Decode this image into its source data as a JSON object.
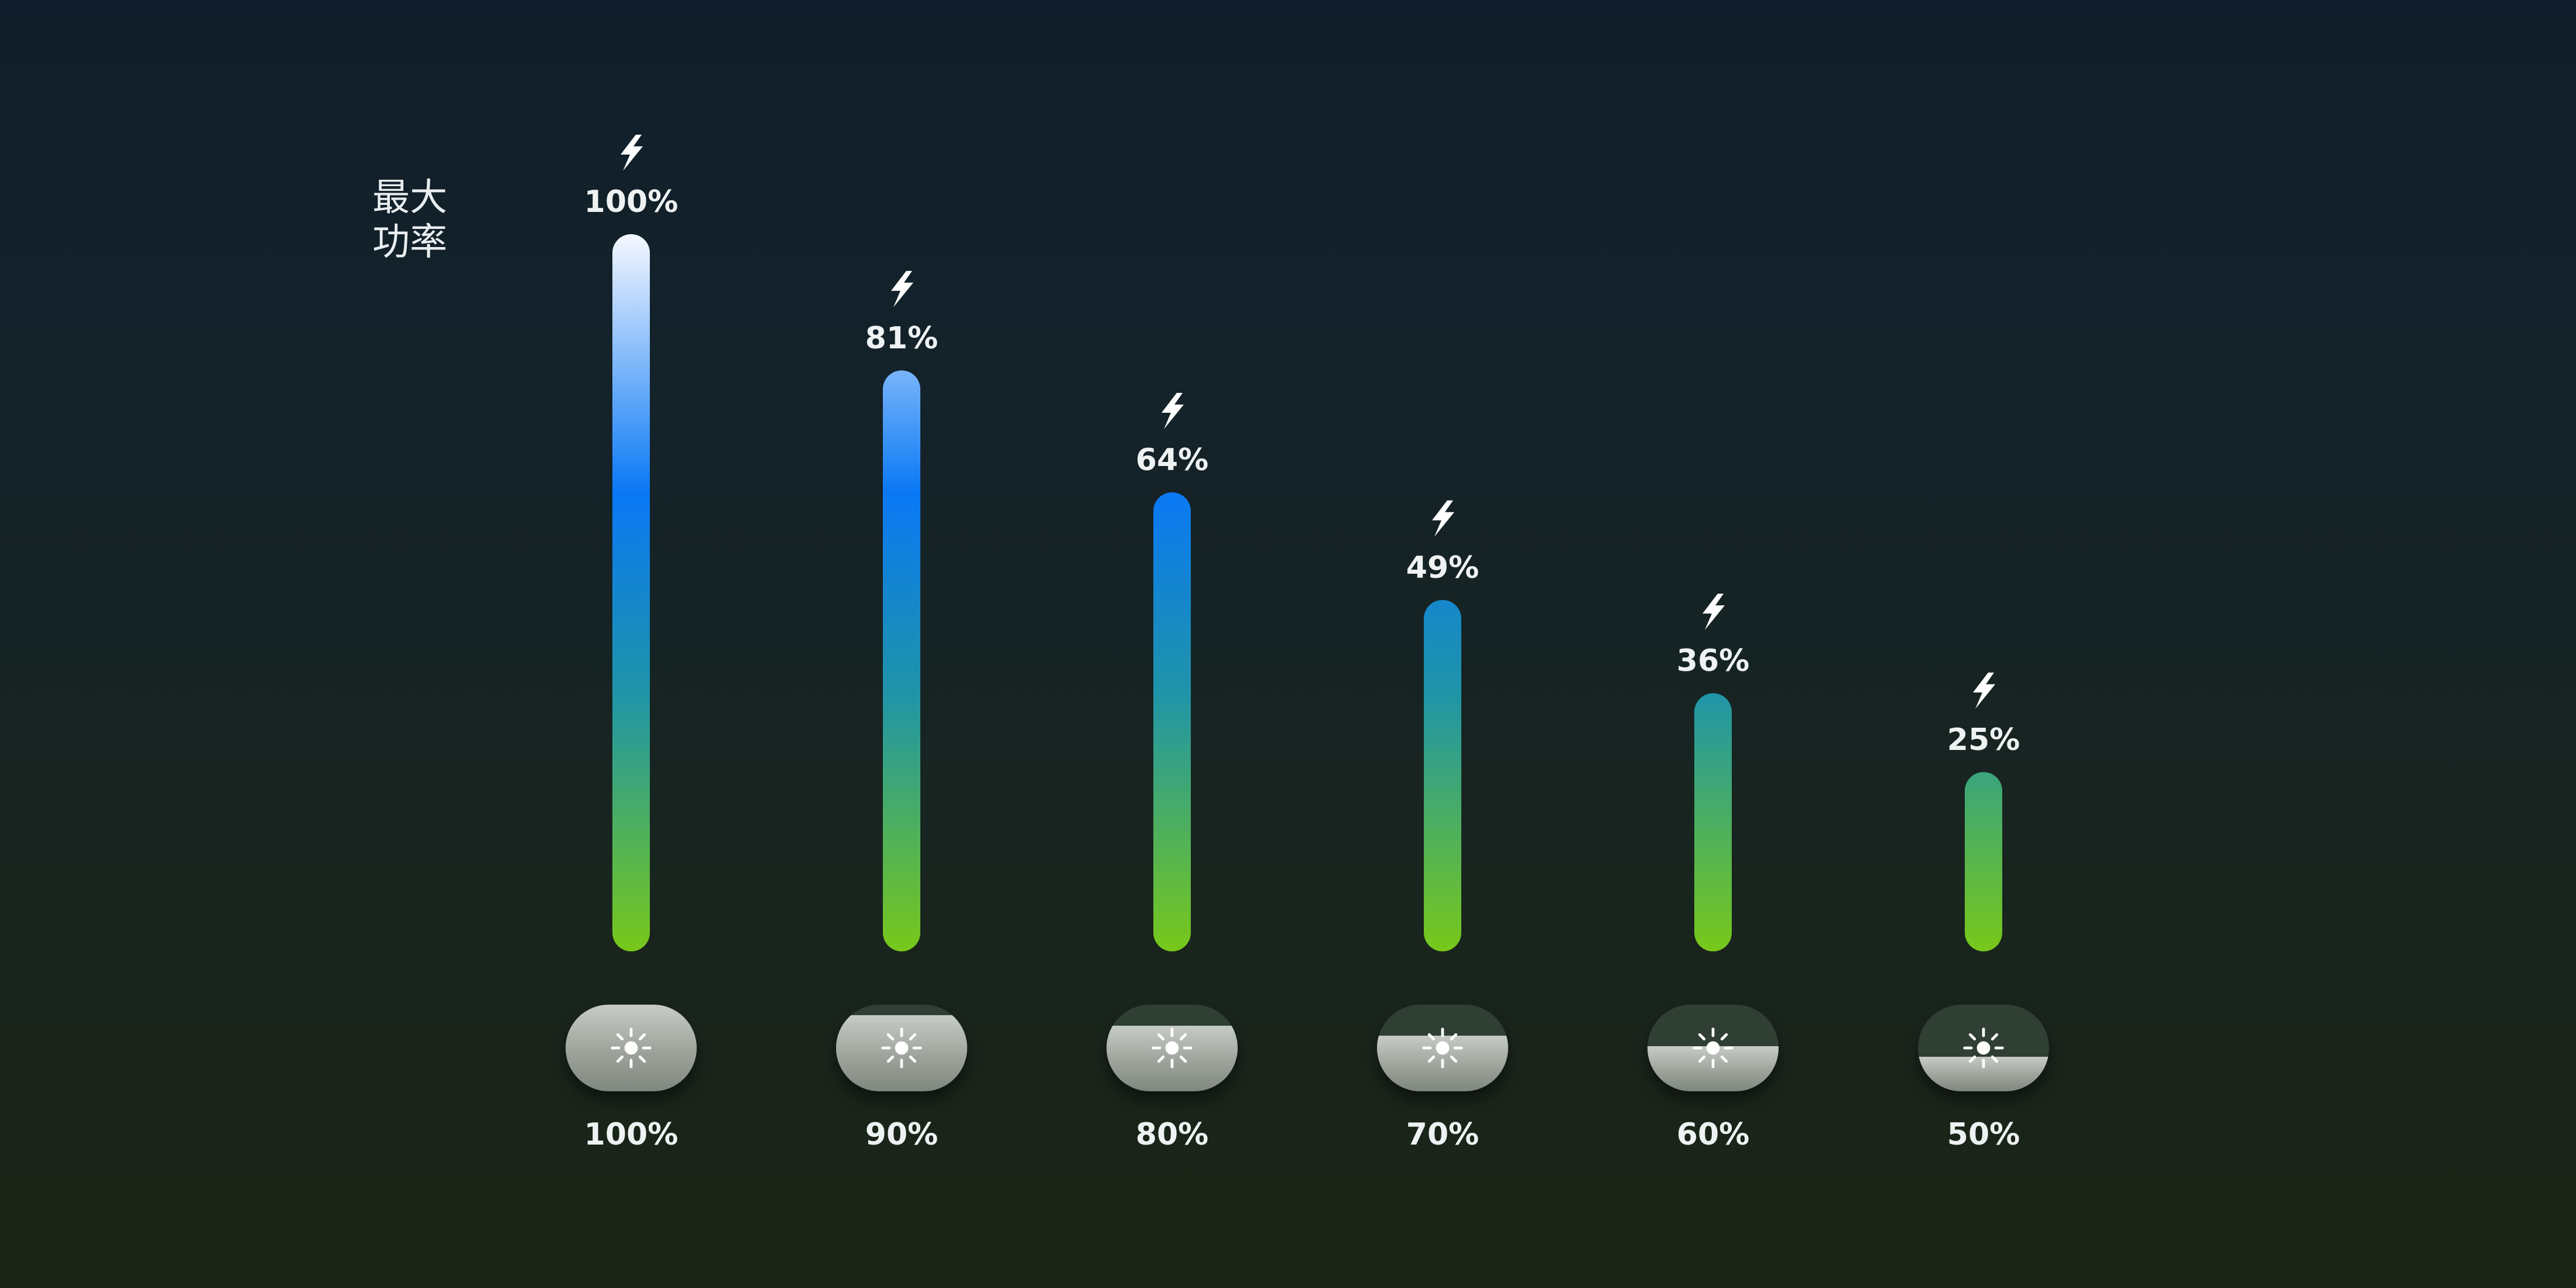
{
  "chart_data": {
    "type": "bar",
    "ylabel_lines": [
      "最大",
      "功率"
    ],
    "categories": [
      "100%",
      "90%",
      "80%",
      "70%",
      "60%",
      "50%"
    ],
    "values": [
      100,
      81,
      64,
      49,
      36,
      25
    ],
    "value_labels": [
      "100%",
      "81%",
      "64%",
      "49%",
      "36%",
      "25%"
    ],
    "brightness_levels": [
      1.0,
      0.9,
      0.8,
      0.7,
      0.6,
      0.5
    ],
    "ylim": [
      0,
      100
    ],
    "grid": true,
    "value_icon": "lightning-bolt-icon",
    "category_icon": "sun-icon",
    "colors": {
      "bar_top": "#f4f8ff",
      "bar_mid": "#0a78f5",
      "bar_low": "#1f94a8",
      "bar_bottom": "#78c81a",
      "gridline": "#2f4042",
      "max_line": "#6f8c8e",
      "text": "#eef2f2"
    }
  }
}
